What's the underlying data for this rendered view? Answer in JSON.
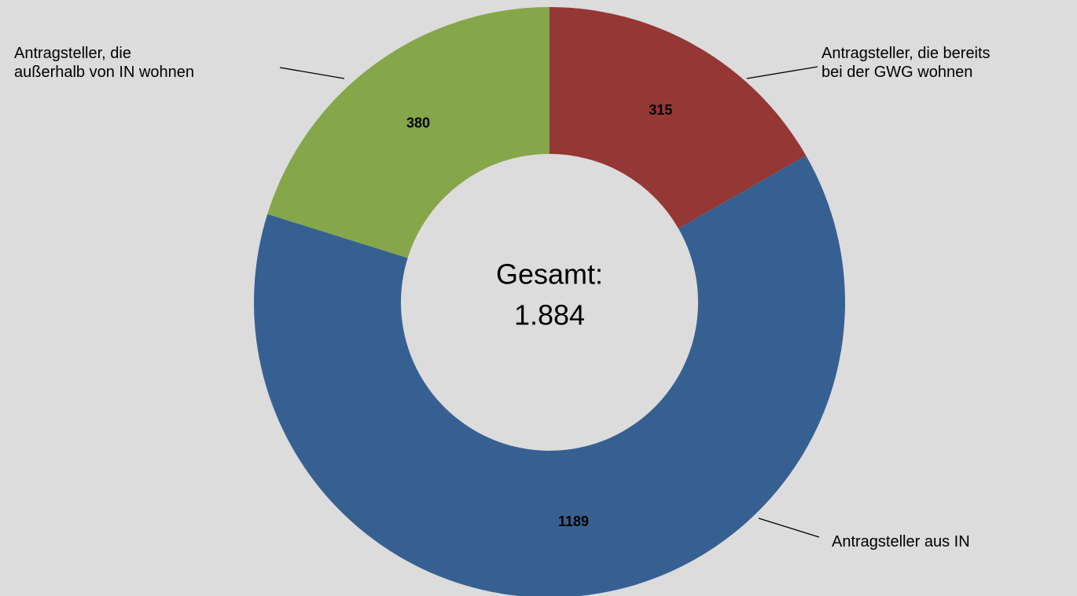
{
  "chart_data": {
    "type": "donut",
    "categories": [
      "Antragsteller, die bereits\nbei der GWG wohnen",
      "Antragsteller aus IN",
      "Antragsteller, die\naußerhalb von IN wohnen"
    ],
    "series": [
      {
        "colors": [
          "#953735",
          "#376092",
          "#86a64a"
        ],
        "values": [
          315,
          1189,
          380
        ]
      }
    ],
    "annotations": [
      "Gesamt:",
      "1.884"
    ]
  }
}
